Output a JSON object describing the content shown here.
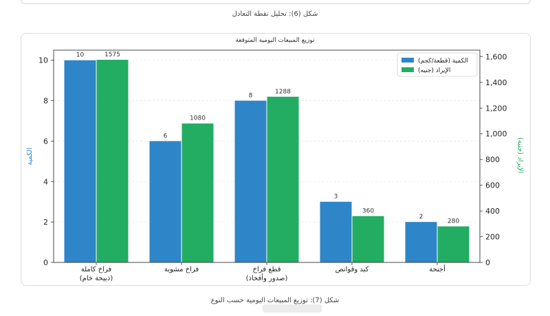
{
  "captions": {
    "figure6": "شكل (6): تحليل نقطة التعادل",
    "figure7": "شكل (7): توزيع المبيعات اليومية حسب النوع"
  },
  "chart_data": {
    "type": "bar",
    "title": "توزيع المبيعات اليومية المتوقعة",
    "categories": [
      [
        "فراخ كاملة",
        "(ذبيحة خام)"
      ],
      [
        "فراخ مشوية"
      ],
      [
        "قطع فراخ",
        "(صدور وأفخاذ)"
      ],
      [
        "كبد وقوانص"
      ],
      [
        "أجنحة"
      ]
    ],
    "series": [
      {
        "name": "الكمية (قطعة/كجم)",
        "axis": "left",
        "color": "#2e86c8",
        "values": [
          10,
          6,
          8,
          3,
          2
        ]
      },
      {
        "name": "الإيراد (جنيه)",
        "axis": "right",
        "color": "#22ad62",
        "values": [
          1575,
          1080,
          1288,
          360,
          280
        ]
      }
    ],
    "ylabel_left": "الكمية",
    "ylabel_right": "الإيراد (جنيه)",
    "ylim_left": [
      0,
      10.5
    ],
    "ylim_right": [
      0,
      1650
    ],
    "yticks_left": [
      "0",
      "2",
      "4",
      "6",
      "8",
      "10"
    ],
    "yticks_right": [
      "0",
      "200",
      "400",
      "600",
      "800",
      "1,000",
      "1,200",
      "1,400",
      "1,600"
    ],
    "grid": true,
    "legend": "top-right"
  },
  "colors": {
    "qty": "#2e86c8",
    "rev": "#22ad62",
    "left_axis_label": "#2e86c8",
    "right_axis_label": "#22ad62"
  }
}
